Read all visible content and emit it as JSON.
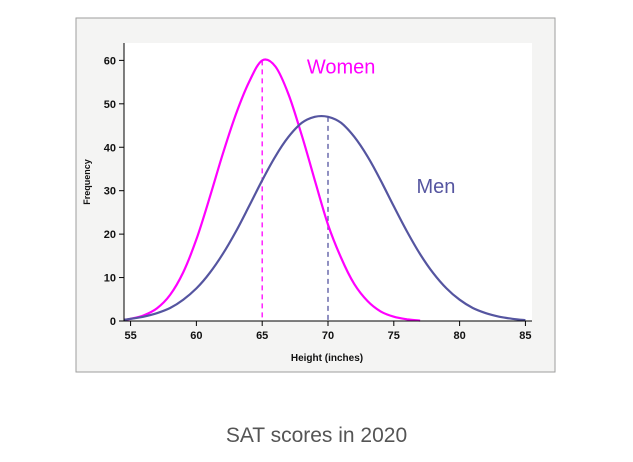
{
  "caption": "SAT scores in 2020",
  "chart_data": {
    "type": "line",
    "xlabel": "Height (inches)",
    "ylabel": "Frequency",
    "xlim": [
      54.5,
      85.5
    ],
    "ylim": [
      0,
      64
    ],
    "xticks": [
      55,
      60,
      65,
      70,
      75,
      80,
      85
    ],
    "yticks": [
      0,
      10,
      20,
      30,
      40,
      50,
      60
    ],
    "legend": "inline labels near curves",
    "grid": false,
    "series": [
      {
        "name": "Women",
        "color": "#ff00ff",
        "mean": 65,
        "peak": 60,
        "x": [
          54.5,
          55,
          56,
          57,
          58,
          59,
          60,
          61,
          62,
          63,
          64,
          65,
          66,
          67,
          68,
          69,
          70,
          71,
          72,
          73,
          74,
          75,
          76,
          77
        ],
        "values": [
          0.3,
          0.5,
          1.3,
          2.9,
          6.0,
          11.2,
          18.8,
          28.3,
          38.4,
          47.6,
          55.0,
          60.0,
          58.6,
          52.2,
          42.8,
          32.4,
          22.2,
          14.5,
          8.5,
          4.6,
          2.2,
          1.0,
          0.4,
          0.1
        ]
      },
      {
        "name": "Men",
        "color": "#5555a0",
        "mean": 70,
        "peak": 47,
        "x": [
          54.5,
          55,
          56,
          57,
          58,
          59,
          60,
          61,
          62,
          63,
          64,
          65,
          66,
          67,
          68,
          69,
          70,
          71,
          72,
          73,
          74,
          75,
          76,
          77,
          78,
          79,
          80,
          81,
          82,
          83,
          84,
          85
        ],
        "values": [
          0.3,
          0.5,
          1.0,
          1.8,
          3.0,
          4.9,
          7.5,
          11.0,
          15.4,
          20.6,
          26.4,
          32.4,
          37.9,
          42.4,
          45.6,
          47.0,
          47.0,
          45.6,
          42.4,
          37.9,
          32.4,
          26.4,
          20.6,
          15.4,
          11.0,
          7.5,
          4.9,
          3.0,
          1.8,
          1.0,
          0.5,
          0.2
        ]
      }
    ]
  }
}
